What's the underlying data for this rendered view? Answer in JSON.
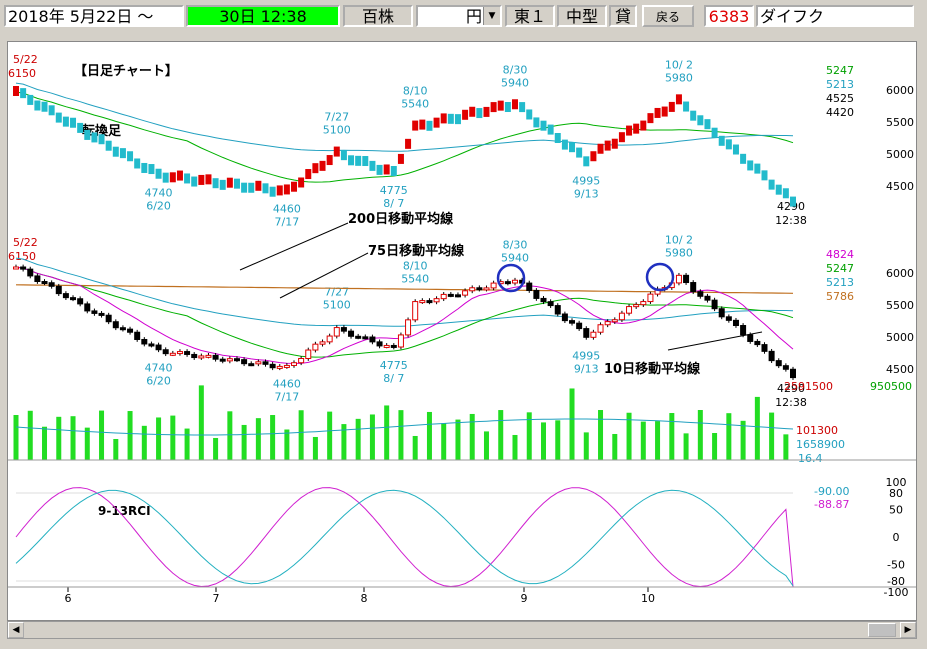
{
  "toolbar": {
    "start_date": "2018年 5月22日 ～",
    "period": "30日 12:38",
    "unit": "百株",
    "currency": "円",
    "market": "東１",
    "size_class": "中型",
    "loan": "貸",
    "back_button": "戻る",
    "code": "6383",
    "company": "ダイフク"
  },
  "colors": {
    "up": "#e00000",
    "down": "#22bbcc",
    "ma10": "#d000d0",
    "ma25": "#00b000",
    "ma75": "#22a0c0",
    "ma200": "#c07020",
    "volume": "#22dd22",
    "rci9": "#d020d0",
    "rci13": "#22b0c0",
    "circle": "#2030c0"
  },
  "panel1": {
    "title": "【日足チャート】",
    "subtitle": "転換足",
    "right_values": [
      "5247",
      "5213",
      "4525",
      "4420"
    ],
    "right_value_colors": [
      "#00a000",
      "#22a0c0",
      "#000000",
      "#000000"
    ],
    "axis": [
      "6000",
      "5500",
      "5000",
      "4500"
    ],
    "anno_start": {
      "date": "5/22",
      "value": "6150"
    },
    "annotations": [
      {
        "l1": "4740",
        "l2": "6/20",
        "dir": "low"
      },
      {
        "l1": "4460",
        "l2": "7/17",
        "dir": "low"
      },
      {
        "l1": "7/27",
        "l2": "5100",
        "dir": "high"
      },
      {
        "l1": "8/10",
        "l2": "5540",
        "dir": "high"
      },
      {
        "l1": "4775",
        "l2": "8/ 7",
        "dir": "low"
      },
      {
        "l1": "8/30",
        "l2": "5940",
        "dir": "high"
      },
      {
        "l1": "4995",
        "l2": "9/13",
        "dir": "low"
      },
      {
        "l1": "10/ 2",
        "l2": "5980",
        "dir": "high"
      }
    ],
    "last": {
      "price": "4290",
      "time": "12:38"
    }
  },
  "panel2": {
    "label_ma200": "200日移動平均線",
    "label_ma75": "75日移動平均線",
    "label_ma10": "10日移動平均線",
    "right_values": [
      "4824",
      "5247",
      "5213",
      "5786"
    ],
    "right_value_colors": [
      "#d000d0",
      "#00a000",
      "#22a0c0",
      "#c07020"
    ],
    "axis": [
      "6000",
      "5500",
      "5000",
      "4500"
    ],
    "anno_start": {
      "date": "5/22",
      "value": "6150"
    },
    "annotations": [
      {
        "l1": "4740",
        "l2": "6/20"
      },
      {
        "l1": "4460",
        "l2": "7/17"
      },
      {
        "l1": "7/27",
        "l2": "5100"
      },
      {
        "l1": "8/10",
        "l2": "5540"
      },
      {
        "l1": "4775",
        "l2": "8/ 7"
      },
      {
        "l1": "8/30",
        "l2": "5940"
      },
      {
        "l1": "4995",
        "l2": "9/13"
      },
      {
        "l1": "10/ 2",
        "l2": "5980"
      }
    ],
    "last": {
      "price": "4290",
      "time": "12:38"
    }
  },
  "volume": {
    "volume_total": "2591500",
    "volume_latest": "950500",
    "level_high": "101300",
    "level_mid": "1658900",
    "level_low": "16.4"
  },
  "rci": {
    "title": "9-13RCI",
    "rci_a": "-90.00",
    "rci_b": "-88.87",
    "axis": [
      "100",
      "80",
      "50",
      "0",
      "-50",
      "-80",
      "-100"
    ]
  },
  "months": [
    "6",
    "7",
    "8",
    "9",
    "10"
  ],
  "chart_data": {
    "type": "line",
    "x": [
      "5/22",
      "6/20",
      "7/17",
      "7/27",
      "8/7",
      "8/10",
      "8/30",
      "9/13",
      "10/2",
      "10/30"
    ],
    "series": [
      {
        "name": "close",
        "values": [
          6150,
          4740,
          4460,
          5100,
          4775,
          5540,
          5940,
          4995,
          5980,
          4290
        ]
      }
    ],
    "ylim": [
      4300,
      6200
    ]
  }
}
